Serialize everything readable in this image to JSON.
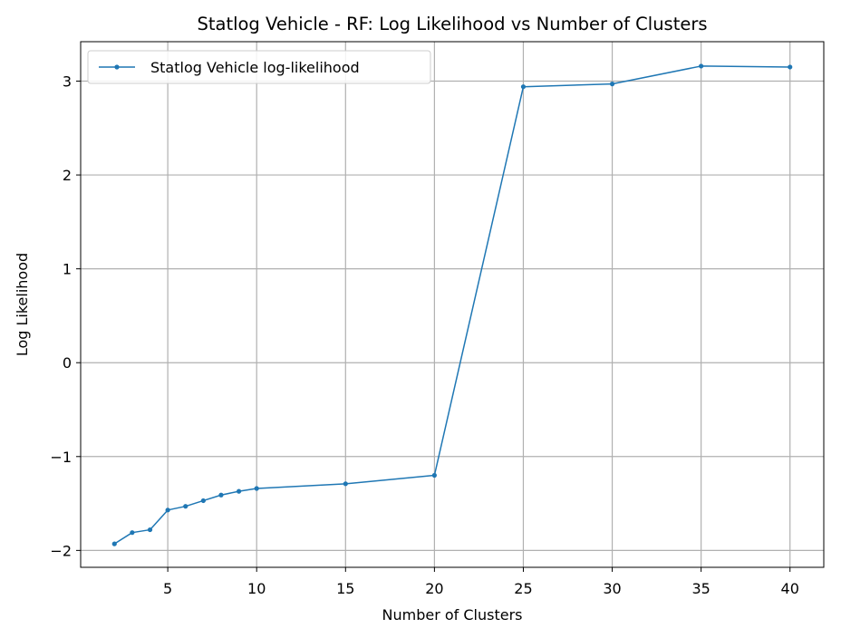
{
  "chart_data": {
    "type": "line",
    "title": "Statlog Vehicle - RF: Log Likelihood vs Number of Clusters",
    "xlabel": "Number of Clusters",
    "ylabel": "Log Likelihood",
    "xlim": [
      0.1,
      41.9
    ],
    "ylim": [
      -2.18,
      3.42
    ],
    "xticks": [
      5,
      10,
      15,
      20,
      25,
      30,
      35,
      40
    ],
    "xtick_labels": [
      "5",
      "10",
      "15",
      "20",
      "25",
      "30",
      "35",
      "40"
    ],
    "yticks": [
      -2,
      -1,
      0,
      1,
      2,
      3
    ],
    "ytick_labels": [
      "−2",
      "−1",
      "0",
      "1",
      "2",
      "3"
    ],
    "grid": true,
    "legend_position": "upper-left",
    "series": [
      {
        "name": "Statlog Vehicle log-likelihood",
        "color": "#1f77b4",
        "marker": "circle",
        "x": [
          2,
          3,
          4,
          5,
          6,
          7,
          8,
          9,
          10,
          15,
          20,
          25,
          30,
          35,
          40
        ],
        "y": [
          -1.93,
          -1.81,
          -1.78,
          -1.57,
          -1.53,
          -1.47,
          -1.41,
          -1.37,
          -1.34,
          -1.29,
          -1.2,
          2.94,
          2.97,
          3.16,
          3.15
        ]
      }
    ]
  }
}
